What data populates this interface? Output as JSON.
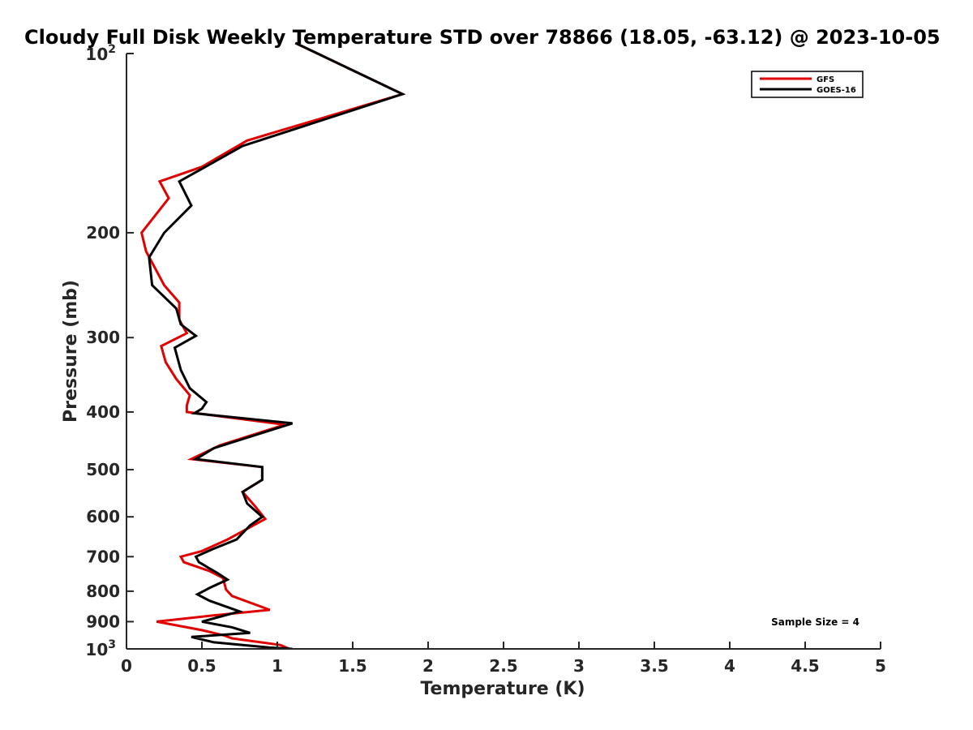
{
  "chart_data": {
    "type": "line",
    "title": "Cloudy Full Disk Weekly Temperature STD over 78866 (18.05, -63.12) @ 2023-10-05",
    "xlabel": "Temperature (K)",
    "ylabel": "Pressure (mb)",
    "xlim": [
      0,
      5
    ],
    "ylim": [
      100,
      1000
    ],
    "yscale": "log",
    "y_reversed": true,
    "xticks": [
      "0",
      "0.5",
      "1",
      "1.5",
      "2",
      "2.5",
      "3",
      "3.5",
      "4",
      "4.5",
      "5"
    ],
    "xtick_values": [
      0,
      0.5,
      1,
      1.5,
      2,
      2.5,
      3,
      3.5,
      4,
      4.5,
      5
    ],
    "yticks": [
      {
        "value": 100,
        "base": "10",
        "exp": "2"
      },
      {
        "value": 200,
        "label": "200"
      },
      {
        "value": 300,
        "label": "300"
      },
      {
        "value": 400,
        "label": "400"
      },
      {
        "value": 500,
        "label": "500"
      },
      {
        "value": 600,
        "label": "600"
      },
      {
        "value": 700,
        "label": "700"
      },
      {
        "value": 800,
        "label": "800"
      },
      {
        "value": 900,
        "label": "900"
      },
      {
        "value": 1000,
        "base": "10",
        "exp": "3"
      }
    ],
    "legend_position": "top-right",
    "annotation": "Sample Size = 4",
    "series": [
      {
        "name": "GFS",
        "color": "#e00000",
        "points": [
          [
            1.12,
            96
          ],
          [
            1.83,
            117
          ],
          [
            0.8,
            140
          ],
          [
            0.5,
            155
          ],
          [
            0.22,
            164
          ],
          [
            0.28,
            175
          ],
          [
            0.1,
            200
          ],
          [
            0.13,
            215
          ],
          [
            0.25,
            245
          ],
          [
            0.35,
            262
          ],
          [
            0.35,
            280
          ],
          [
            0.4,
            295
          ],
          [
            0.23,
            310
          ],
          [
            0.26,
            330
          ],
          [
            0.33,
            352
          ],
          [
            0.42,
            375
          ],
          [
            0.4,
            390
          ],
          [
            0.4,
            400
          ],
          [
            1.05,
            420
          ],
          [
            0.62,
            455
          ],
          [
            0.43,
            480
          ],
          [
            0.9,
            495
          ],
          [
            0.9,
            520
          ],
          [
            0.77,
            545
          ],
          [
            0.85,
            575
          ],
          [
            0.92,
            605
          ],
          [
            0.67,
            655
          ],
          [
            0.5,
            685
          ],
          [
            0.36,
            700
          ],
          [
            0.38,
            715
          ],
          [
            0.55,
            740
          ],
          [
            0.64,
            760
          ],
          [
            0.66,
            795
          ],
          [
            0.7,
            815
          ],
          [
            0.95,
            860
          ],
          [
            0.55,
            880
          ],
          [
            0.2,
            900
          ],
          [
            0.5,
            930
          ],
          [
            0.65,
            950
          ],
          [
            0.7,
            960
          ],
          [
            1.02,
            985
          ],
          [
            1.08,
            1000
          ]
        ]
      },
      {
        "name": "GOES-16",
        "color": "#000000",
        "points": [
          [
            1.12,
            96
          ],
          [
            1.83,
            117
          ],
          [
            0.77,
            143
          ],
          [
            0.35,
            164
          ],
          [
            0.43,
            180
          ],
          [
            0.25,
            200
          ],
          [
            0.15,
            220
          ],
          [
            0.17,
            245
          ],
          [
            0.33,
            268
          ],
          [
            0.36,
            285
          ],
          [
            0.46,
            298
          ],
          [
            0.32,
            312
          ],
          [
            0.36,
            340
          ],
          [
            0.42,
            365
          ],
          [
            0.53,
            385
          ],
          [
            0.5,
            395
          ],
          [
            0.45,
            402
          ],
          [
            1.1,
            418
          ],
          [
            0.58,
            460
          ],
          [
            0.46,
            480
          ],
          [
            0.9,
            495
          ],
          [
            0.9,
            520
          ],
          [
            0.77,
            545
          ],
          [
            0.8,
            570
          ],
          [
            0.9,
            600
          ],
          [
            0.82,
            620
          ],
          [
            0.73,
            655
          ],
          [
            0.57,
            680
          ],
          [
            0.46,
            700
          ],
          [
            0.48,
            715
          ],
          [
            0.6,
            745
          ],
          [
            0.67,
            765
          ],
          [
            0.55,
            790
          ],
          [
            0.47,
            810
          ],
          [
            0.55,
            830
          ],
          [
            0.75,
            865
          ],
          [
            0.5,
            900
          ],
          [
            0.7,
            920
          ],
          [
            0.82,
            940
          ],
          [
            0.43,
            955
          ],
          [
            0.58,
            975
          ],
          [
            0.95,
            995
          ],
          [
            1.1,
            1000
          ]
        ]
      }
    ]
  }
}
